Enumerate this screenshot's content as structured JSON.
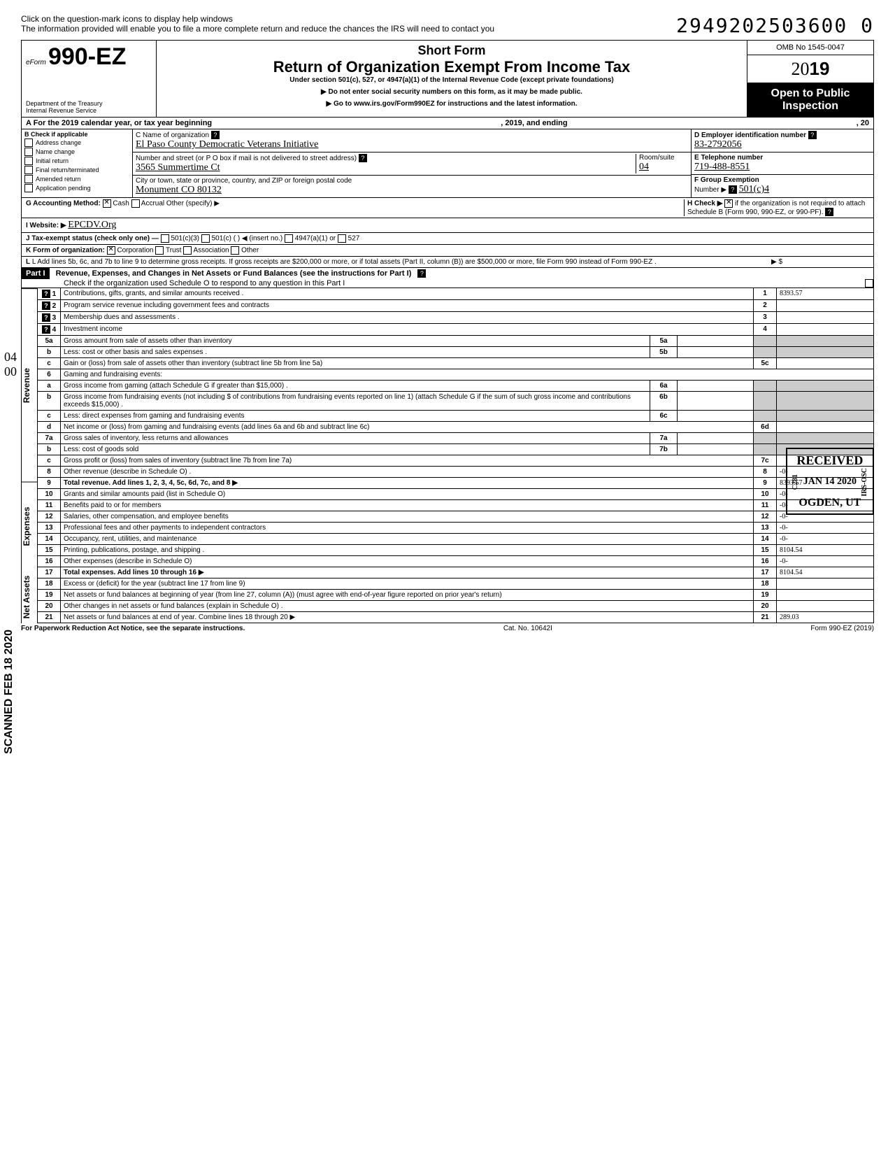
{
  "top": {
    "hint1": "Click on the question-mark icons to display help windows",
    "hint2": "The information provided will enable you to file a more complete return and reduce the chances the IRS will need to contact you",
    "dln": "2949202503600   0"
  },
  "header": {
    "efile": "eForm",
    "form_no": "990-EZ",
    "dept": "Department of the Treasury\nInternal Revenue Service",
    "short_form": "Short Form",
    "title": "Return of Organization Exempt From Income Tax",
    "subtitle": "Under section 501(c), 527, or 4947(a)(1) of the Internal Revenue Code (except private foundations)",
    "note1": "▶ Do not enter social security numbers on this form, as it may be made public.",
    "note2": "▶ Go to www.irs.gov/Form990EZ for instructions and the latest information.",
    "omb": "OMB No 1545-0047",
    "year": "2019",
    "open": "Open to Public Inspection"
  },
  "rowA": {
    "left": "A For the 2019 calendar year, or tax year beginning",
    "mid": ", 2019, and ending",
    "right": ", 20"
  },
  "colB": {
    "title": "B Check if applicable",
    "items": [
      "Address change",
      "Name change",
      "Initial return",
      "Final return/terminated",
      "Amended return",
      "Application pending"
    ]
  },
  "colC": {
    "name_lbl": "C Name of organization",
    "name_val": "El Paso County Democratic Veterans Initiative",
    "street_lbl": "Number and street (or P O box if mail is not delivered to street address)",
    "street_val": "3565 Summertime Ct",
    "room_lbl": "Room/suite",
    "room_val": "04",
    "city_lbl": "City or town, state or province, country, and ZIP or foreign postal code",
    "city_val": "Monument    CO    80132"
  },
  "colDEF": {
    "d_lbl": "D Employer identification number",
    "d_val": "83-2792056",
    "e_lbl": "E Telephone number",
    "e_val": "719-488-8551",
    "f_lbl": "F Group Exemption",
    "f_lbl2": "Number ▶",
    "f_val": "501(c)4"
  },
  "rowsGK": {
    "g": "G Accounting Method:",
    "g_cash": "Cash",
    "g_accr": "Accrual",
    "g_other": "Other (specify) ▶",
    "h": "H Check ▶",
    "h_txt": "if the organization is not required to attach Schedule B (Form 990, 990-EZ, or 990-PF).",
    "i": "I Website: ▶",
    "i_val": "EPCDV.Org",
    "j": "J Tax-exempt status (check only one) —",
    "j_501c3": "501(c)(3)",
    "j_501c": "501(c) (",
    "j_insert": ") ◀ (insert no.)",
    "j_4947": "4947(a)(1) or",
    "j_527": "527",
    "k": "K Form of organization:",
    "k_corp": "Corporation",
    "k_trust": "Trust",
    "k_assoc": "Association",
    "k_other": "Other",
    "l": "L Add lines 5b, 6c, and 7b to line 9 to determine gross receipts. If gross receipts are $200,000 or more, or if total assets (Part II, column (B)) are $500,000 or more, file Form 990 instead of Form 990-EZ .",
    "l_sym": "▶  $"
  },
  "part1": {
    "hdr": "Part I",
    "title": "Revenue, Expenses, and Changes in Net Assets or Fund Balances (see the instructions for Part I)",
    "check": "Check if the organization used Schedule O to respond to any question in this Part I"
  },
  "sections": {
    "revenue": "Revenue",
    "expenses": "Expenses",
    "netassets": "Net Assets"
  },
  "lines": [
    {
      "n": "1",
      "d": "Contributions, gifts, grants, and similar amounts received .",
      "amt": "8393.57"
    },
    {
      "n": "2",
      "d": "Program service revenue including government fees and contracts",
      "amt": ""
    },
    {
      "n": "3",
      "d": "Membership dues and assessments .",
      "amt": ""
    },
    {
      "n": "4",
      "d": "Investment income",
      "amt": ""
    },
    {
      "n": "5a",
      "d": "Gross amount from sale of assets other than inventory",
      "sub": "5a",
      "subamt": ""
    },
    {
      "n": "b",
      "d": "Less: cost or other basis and sales expenses .",
      "sub": "5b",
      "subamt": ""
    },
    {
      "n": "c",
      "d": "Gain or (loss) from sale of assets other than inventory (subtract line 5b from line 5a)",
      "num": "5c",
      "amt": ""
    },
    {
      "n": "6",
      "d": "Gaming and fundraising events:"
    },
    {
      "n": "a",
      "d": "Gross income from gaming (attach Schedule G if greater than $15,000) .",
      "sub": "6a",
      "subamt": ""
    },
    {
      "n": "b",
      "d": "Gross income from fundraising events (not including  $                    of contributions from fundraising events reported on line 1) (attach Schedule G if the sum of such gross income and contributions exceeds $15,000) .",
      "sub": "6b",
      "subamt": ""
    },
    {
      "n": "c",
      "d": "Less: direct expenses from gaming and fundraising events",
      "sub": "6c",
      "subamt": ""
    },
    {
      "n": "d",
      "d": "Net income or (loss) from gaming and fundraising events (add lines 6a and 6b and subtract line 6c)",
      "num": "6d",
      "amt": ""
    },
    {
      "n": "7a",
      "d": "Gross sales of inventory, less returns and allowances",
      "sub": "7a",
      "subamt": ""
    },
    {
      "n": "b",
      "d": "Less: cost of goods sold",
      "sub": "7b",
      "subamt": ""
    },
    {
      "n": "c",
      "d": "Gross profit or (loss) from sales of inventory (subtract line 7b from line 7a)",
      "num": "7c",
      "amt": ""
    },
    {
      "n": "8",
      "d": "Other revenue (describe in Schedule O) .",
      "num": "8",
      "amt": "-0-"
    },
    {
      "n": "9",
      "d": "Total revenue. Add lines 1, 2, 3, 4, 5c, 6d, 7c, and 8   ▶",
      "num": "9",
      "amt": "8393.57",
      "bold": true
    },
    {
      "n": "10",
      "d": "Grants and similar amounts paid (list in Schedule O)",
      "num": "10",
      "amt": "-0-"
    },
    {
      "n": "11",
      "d": "Benefits paid to or for members",
      "num": "11",
      "amt": "-0-"
    },
    {
      "n": "12",
      "d": "Salaries, other compensation, and employee benefits",
      "num": "12",
      "amt": "-0-"
    },
    {
      "n": "13",
      "d": "Professional fees and other payments to independent contractors",
      "num": "13",
      "amt": "-0-"
    },
    {
      "n": "14",
      "d": "Occupancy, rent, utilities, and maintenance",
      "num": "14",
      "amt": "-0-"
    },
    {
      "n": "15",
      "d": "Printing, publications, postage, and shipping .",
      "num": "15",
      "amt": "8104.54"
    },
    {
      "n": "16",
      "d": "Other expenses (describe in Schedule O)",
      "num": "16",
      "amt": "-0-"
    },
    {
      "n": "17",
      "d": "Total expenses. Add lines 10 through 16  ▶",
      "num": "17",
      "amt": "8104.54",
      "bold": true
    },
    {
      "n": "18",
      "d": "Excess or (deficit) for the year (subtract line 17 from line 9)",
      "num": "18",
      "amt": ""
    },
    {
      "n": "19",
      "d": "Net assets or fund balances at beginning of year (from line 27, column (A)) (must agree with end-of-year figure reported on prior year's return)",
      "num": "19",
      "amt": ""
    },
    {
      "n": "20",
      "d": "Other changes in net assets or fund balances (explain in Schedule O) .",
      "num": "20",
      "amt": ""
    },
    {
      "n": "21",
      "d": "Net assets or fund balances at end of year. Combine lines 18 through 20  ▶",
      "num": "21",
      "amt": "289.03"
    }
  ],
  "stamps": {
    "received": "RECEIVED",
    "date": "JAN 14 2020",
    "c281": "C281",
    "loc": "OGDEN, UT",
    "scanned": "SCANNED  FEB 18 2020",
    "irs": "IRS-OSC"
  },
  "margin": {
    "left": "04\n00"
  },
  "footer": {
    "left": "For Paperwork Reduction Act Notice, see the separate instructions.",
    "mid": "Cat. No. 10642I",
    "right": "Form 990-EZ (2019)"
  }
}
